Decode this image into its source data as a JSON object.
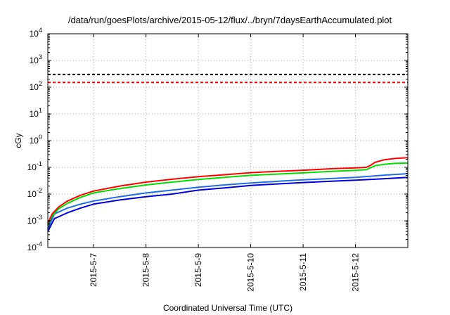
{
  "chart_data": {
    "type": "line",
    "title": "/data/run/goesPlots/archive/2015-05-12/flux/../bryn/7daysEarthAccumulated.plot",
    "xlabel": "Coordinated Universal Time (UTC)",
    "ylabel": "cGy",
    "yscale": "log",
    "ylim": [
      0.0001,
      10000
    ],
    "y_ticks": [
      {
        "value": 0.0001,
        "base": "10",
        "exp": "-4"
      },
      {
        "value": 0.001,
        "base": "10",
        "exp": "-3"
      },
      {
        "value": 0.01,
        "base": "10",
        "exp": "-2"
      },
      {
        "value": 0.1,
        "base": "10",
        "exp": "-1"
      },
      {
        "value": 1,
        "base": "10",
        "exp": "0"
      },
      {
        "value": 10,
        "base": "10",
        "exp": "1"
      },
      {
        "value": 100,
        "base": "10",
        "exp": "2"
      },
      {
        "value": 1000,
        "base": "10",
        "exp": "3"
      },
      {
        "value": 10000,
        "base": "10",
        "exp": "4"
      }
    ],
    "xlim": [
      "2015-05-06 03:00",
      "2015-05-12 23:59"
    ],
    "x_ticks": [
      "2015-5-7",
      "2015-5-8",
      "2015-5-9",
      "2015-5-10",
      "2015-5-11",
      "2015-5-12"
    ],
    "grid": true,
    "thresholds": [
      {
        "value": 300,
        "color": "#000000",
        "dash": true
      },
      {
        "value": 150,
        "color": "#ff0000",
        "dash": true
      }
    ],
    "series": [
      {
        "color": "#ff0000",
        "x": [
          "2015-05-06 03:00",
          "2015-05-06 05:00",
          "2015-05-06 08:00",
          "2015-05-06 12:00",
          "2015-05-06 18:00",
          "2015-05-07 00:00",
          "2015-05-07 12:00",
          "2015-05-08 00:00",
          "2015-05-08 12:00",
          "2015-05-09 00:00",
          "2015-05-09 12:00",
          "2015-05-10 00:00",
          "2015-05-10 12:00",
          "2015-05-11 00:00",
          "2015-05-11 12:00",
          "2015-05-12 00:00",
          "2015-05-12 05:00",
          "2015-05-12 07:00",
          "2015-05-12 09:00",
          "2015-05-12 13:00",
          "2015-05-12 18:00",
          "2015-05-12 23:59"
        ],
        "y": [
          0.0008,
          0.0018,
          0.0033,
          0.0055,
          0.009,
          0.013,
          0.02,
          0.028,
          0.036,
          0.045,
          0.053,
          0.063,
          0.071,
          0.078,
          0.088,
          0.095,
          0.1,
          0.12,
          0.155,
          0.19,
          0.215,
          0.23
        ]
      },
      {
        "color": "#00dd00",
        "x": [
          "2015-05-06 03:00",
          "2015-05-06 05:00",
          "2015-05-06 08:00",
          "2015-05-06 12:00",
          "2015-05-06 18:00",
          "2015-05-07 00:00",
          "2015-05-07 12:00",
          "2015-05-08 00:00",
          "2015-05-08 12:00",
          "2015-05-09 00:00",
          "2015-05-09 12:00",
          "2015-05-10 00:00",
          "2015-05-10 12:00",
          "2015-05-11 00:00",
          "2015-05-11 12:00",
          "2015-05-12 00:00",
          "2015-05-12 05:00",
          "2015-05-12 07:00",
          "2015-05-12 09:00",
          "2015-05-12 13:00",
          "2015-05-12 18:00",
          "2015-05-12 23:59"
        ],
        "y": [
          0.0007,
          0.0015,
          0.0028,
          0.0045,
          0.0075,
          0.011,
          0.016,
          0.022,
          0.028,
          0.035,
          0.042,
          0.05,
          0.056,
          0.062,
          0.07,
          0.077,
          0.082,
          0.097,
          0.115,
          0.13,
          0.14,
          0.145
        ]
      },
      {
        "color": "#1e6ee6",
        "x": [
          "2015-05-06 03:00",
          "2015-05-06 06:00",
          "2015-05-06 12:00",
          "2015-05-06 18:00",
          "2015-05-07 00:00",
          "2015-05-07 12:00",
          "2015-05-08 00:00",
          "2015-05-08 12:00",
          "2015-05-09 00:00",
          "2015-05-09 12:00",
          "2015-05-10 00:00",
          "2015-05-10 12:00",
          "2015-05-11 00:00",
          "2015-05-11 12:00",
          "2015-05-12 00:00",
          "2015-05-12 12:00",
          "2015-05-12 23:59"
        ],
        "y": [
          0.0005,
          0.0018,
          0.003,
          0.0042,
          0.0055,
          0.008,
          0.011,
          0.014,
          0.018,
          0.022,
          0.026,
          0.03,
          0.034,
          0.038,
          0.042,
          0.05,
          0.058
        ]
      },
      {
        "color": "#0000dd",
        "x": [
          "2015-05-06 03:00",
          "2015-05-06 06:00",
          "2015-05-06 12:00",
          "2015-05-06 18:00",
          "2015-05-07 00:00",
          "2015-05-07 12:00",
          "2015-05-08 00:00",
          "2015-05-08 12:00",
          "2015-05-09 00:00",
          "2015-05-09 12:00",
          "2015-05-10 00:00",
          "2015-05-10 12:00",
          "2015-05-11 00:00",
          "2015-05-11 12:00",
          "2015-05-12 00:00",
          "2015-05-12 12:00",
          "2015-05-12 23:59"
        ],
        "y": [
          0.0004,
          0.0012,
          0.002,
          0.003,
          0.0042,
          0.006,
          0.008,
          0.01,
          0.014,
          0.017,
          0.021,
          0.024,
          0.027,
          0.03,
          0.033,
          0.037,
          0.042
        ]
      }
    ]
  }
}
